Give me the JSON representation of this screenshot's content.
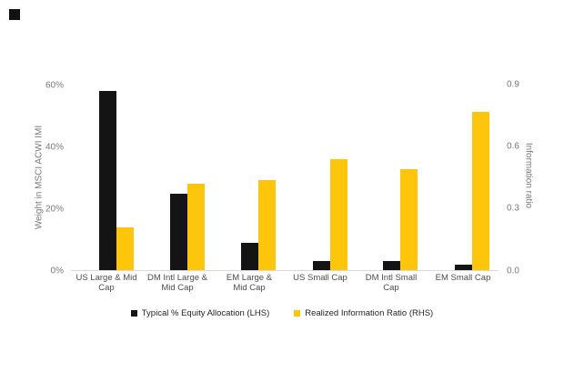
{
  "brand": {
    "logo_mark": "black-square"
  },
  "chart_data": {
    "type": "bar",
    "title": "",
    "categories": [
      "US Large & Mid Cap",
      "DM Intl Large & Mid Cap",
      "EM Large & Mid Cap",
      "US Small Cap",
      "DM Intl Small Cap",
      "EM Small Cap"
    ],
    "category_display_lines": [
      [
        "US Large & Mid",
        "Cap"
      ],
      [
        "DM Intl Large &",
        "Mid Cap"
      ],
      [
        "EM Large &",
        "Mid Cap"
      ],
      [
        "US Small Cap"
      ],
      [
        "DM Intl Small",
        "Cap"
      ],
      [
        "EM Small Cap"
      ]
    ],
    "series": [
      {
        "name": "Typical % Equity Allocation (LHS)",
        "axis": "left",
        "color": "#141414",
        "values": [
          58,
          25,
          9,
          3,
          3,
          2
        ],
        "unit": "%"
      },
      {
        "name": "Realized Information Ratio (RHS)",
        "axis": "right",
        "color": "#fdc50c",
        "values": [
          0.21,
          0.42,
          0.44,
          0.54,
          0.49,
          0.77
        ],
        "unit": "ratio"
      }
    ],
    "left_axis": {
      "title": "Weight in MSCI ACWI IMI",
      "ticks": [
        "0%",
        "20%",
        "40%",
        "60%"
      ],
      "tick_values": [
        0,
        20,
        40,
        60
      ],
      "range": [
        0,
        66
      ]
    },
    "right_axis": {
      "title": "Information ratio",
      "ticks": [
        "0.0",
        "0.3",
        "0.6",
        "0.9"
      ],
      "tick_values": [
        0,
        0.3,
        0.6,
        0.9
      ],
      "range": [
        0,
        0.99
      ]
    },
    "legend": {
      "position": "bottom",
      "entries": [
        {
          "label": "Typical % Equity Allocation (LHS)",
          "color": "#141414"
        },
        {
          "label": "Realized Information Ratio (RHS)",
          "color": "#fdc50c"
        }
      ]
    },
    "grid": false,
    "background": "#ffffff"
  }
}
